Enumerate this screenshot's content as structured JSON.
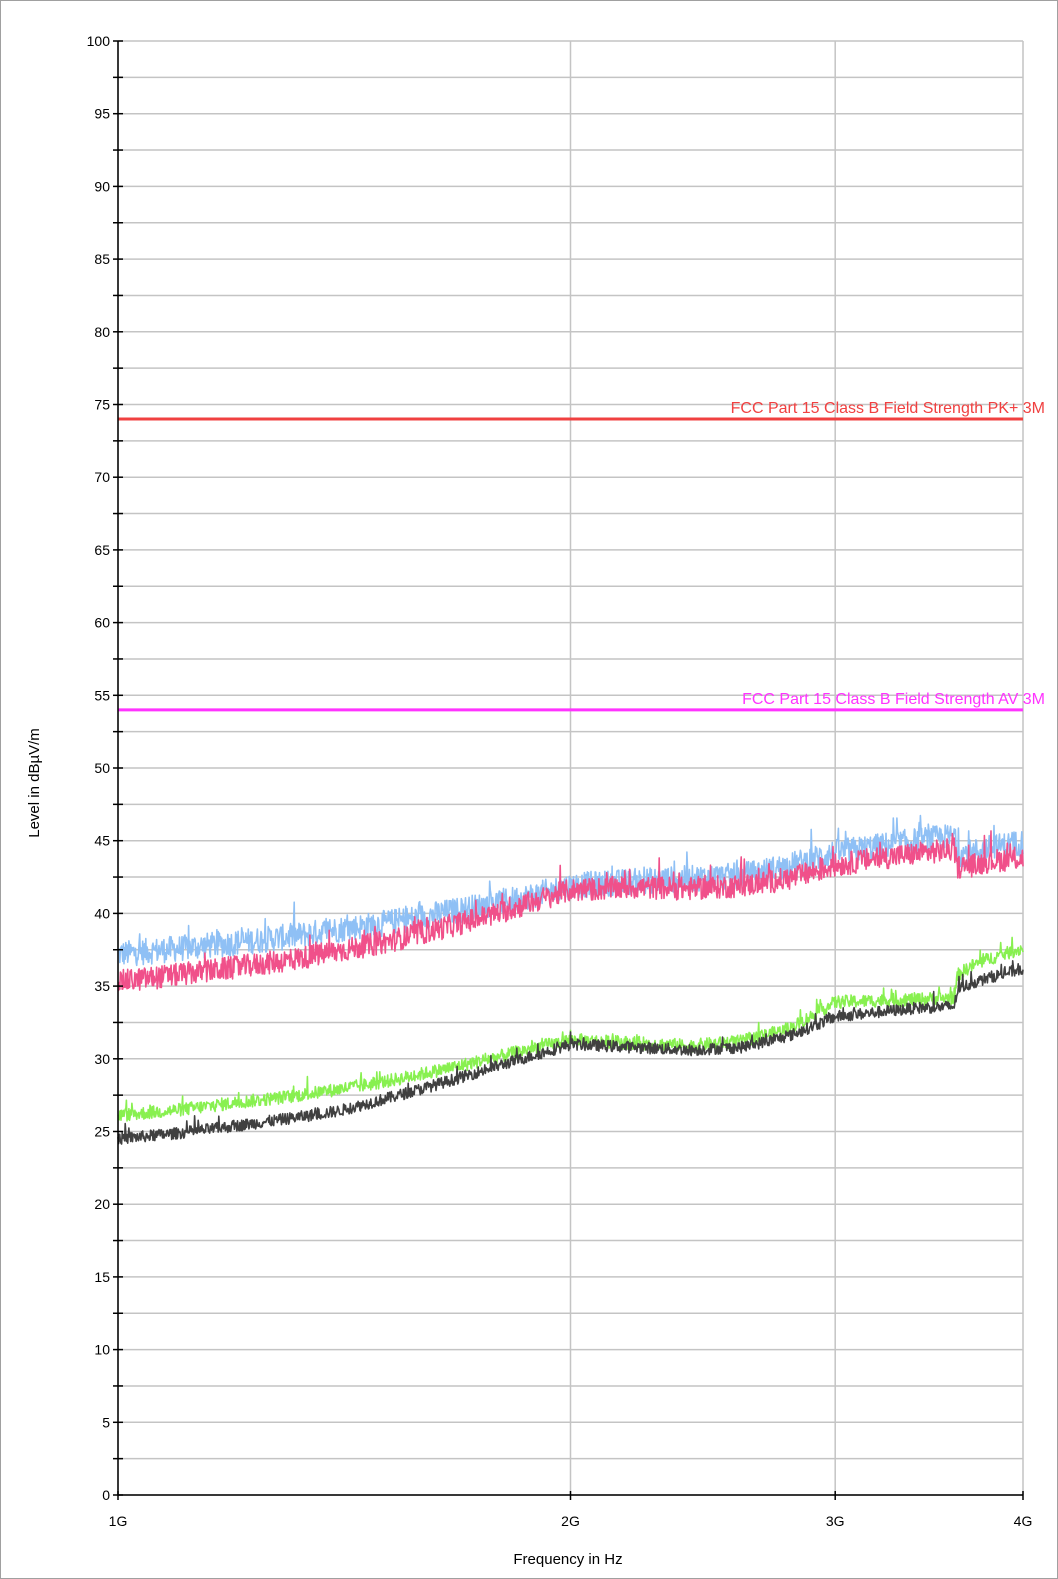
{
  "chart_data": {
    "type": "line",
    "xlabel": "Frequency in Hz",
    "ylabel": "Level in dBµV/m",
    "xscale": "log",
    "xlim": [
      1000000000,
      4000000000
    ],
    "ylim": [
      0,
      100
    ],
    "grid": true,
    "y_ticks": [
      0,
      5,
      10,
      15,
      20,
      25,
      30,
      35,
      40,
      45,
      50,
      55,
      60,
      65,
      70,
      75,
      80,
      85,
      90,
      95,
      100
    ],
    "x_ticks": [
      {
        "value": 1000000000,
        "label": "1G"
      },
      {
        "value": 2000000000,
        "label": "2G"
      },
      {
        "value": 3000000000,
        "label": "3G"
      },
      {
        "value": 4000000000,
        "label": "4G"
      }
    ],
    "limits": [
      {
        "name": "FCC Part 15 Class B Field Strength PK+ 3M",
        "value": 74,
        "color": "#f04040"
      },
      {
        "name": "FCC Part 15 Class B Field Strength AV 3M",
        "value": 54,
        "color": "#ff33ff"
      }
    ],
    "series": [
      {
        "color": "#8fc0f5",
        "noise": 0.9,
        "x": [
          1.0,
          1.1,
          1.2,
          1.3,
          1.4,
          1.5,
          1.6,
          1.7,
          1.8,
          1.9,
          2.0,
          2.2,
          2.4,
          2.6,
          2.8,
          3.0,
          3.2,
          3.4,
          3.6,
          3.62,
          3.7,
          3.8,
          4.0
        ],
        "values": [
          37.2,
          37.6,
          38.0,
          38.4,
          38.9,
          39.3,
          39.8,
          40.3,
          40.8,
          41.3,
          41.9,
          42.2,
          42.4,
          42.6,
          43.3,
          44.2,
          44.6,
          45.0,
          45.3,
          44.1,
          44.2,
          44.5,
          44.9
        ]
      },
      {
        "color": "#f0508a",
        "noise": 0.8,
        "x": [
          1.0,
          1.1,
          1.2,
          1.3,
          1.4,
          1.5,
          1.6,
          1.7,
          1.8,
          1.9,
          2.0,
          2.2,
          2.4,
          2.6,
          2.8,
          3.0,
          3.2,
          3.4,
          3.6,
          3.62,
          3.7,
          3.8,
          4.0
        ],
        "values": [
          35.3,
          35.8,
          36.3,
          36.8,
          37.4,
          38.0,
          38.7,
          39.4,
          40.1,
          40.9,
          41.6,
          41.8,
          41.7,
          41.9,
          42.4,
          43.3,
          43.8,
          44.1,
          44.4,
          43.2,
          43.3,
          43.6,
          43.8
        ]
      },
      {
        "color": "#88f050",
        "noise": 0.45,
        "x": [
          1.0,
          1.1,
          1.2,
          1.3,
          1.4,
          1.5,
          1.6,
          1.7,
          1.8,
          1.9,
          2.0,
          2.2,
          2.4,
          2.6,
          2.8,
          3.0,
          3.2,
          3.4,
          3.6,
          3.62,
          3.7,
          3.8,
          4.0
        ],
        "values": [
          26.1,
          26.5,
          27.0,
          27.4,
          27.9,
          28.4,
          29.0,
          29.6,
          30.2,
          30.8,
          31.3,
          31.1,
          30.9,
          31.2,
          32.1,
          33.9,
          34.0,
          34.1,
          34.2,
          35.8,
          36.4,
          36.9,
          37.6
        ]
      },
      {
        "color": "#404040",
        "noise": 0.4,
        "x": [
          1.0,
          1.1,
          1.2,
          1.3,
          1.4,
          1.5,
          1.6,
          1.7,
          1.8,
          1.9,
          2.0,
          2.2,
          2.4,
          2.6,
          2.8,
          3.0,
          3.2,
          3.4,
          3.6,
          3.62,
          3.7,
          3.8,
          4.0
        ],
        "values": [
          24.5,
          24.9,
          25.4,
          25.9,
          26.4,
          27.2,
          28.0,
          28.8,
          29.6,
          30.3,
          31.0,
          30.8,
          30.6,
          30.8,
          31.6,
          32.9,
          33.2,
          33.5,
          33.6,
          34.8,
          35.2,
          35.6,
          36.2
        ]
      }
    ]
  }
}
